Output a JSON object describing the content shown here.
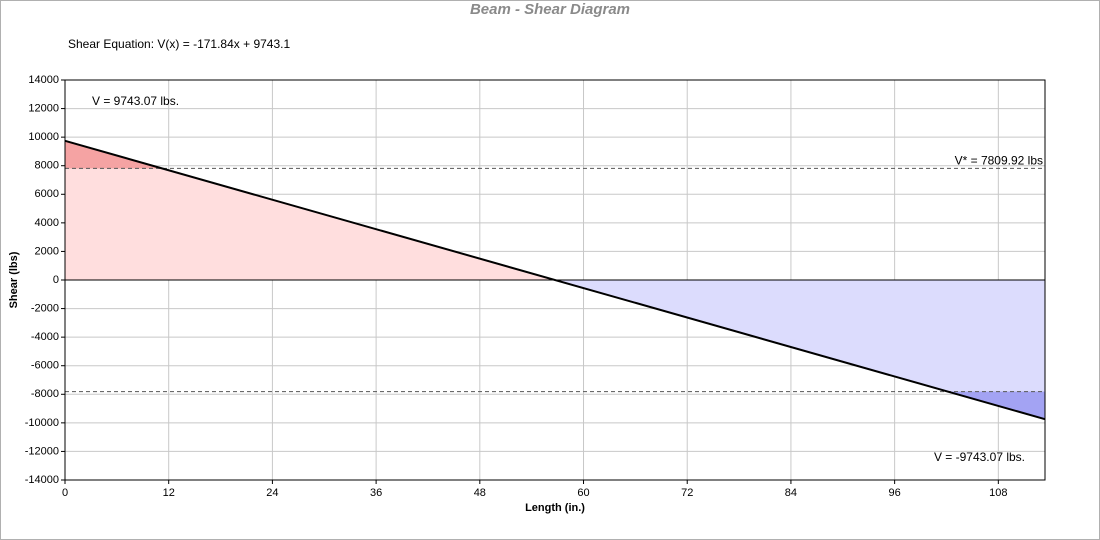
{
  "chart_data": {
    "type": "line",
    "title": "Beam - Shear Diagram",
    "equation": "Shear Equation:  V(x) = -171.84x + 9743.1",
    "x_label": "Length (in.)",
    "y_label": "Shear (lbs)",
    "x": [
      0,
      113.4
    ],
    "series": [
      {
        "color": "#000000",
        "values": [
          9743.07,
          -9743.07
        ],
        "value_labels": [
          "V = 9743.07 lbs.",
          "V = -9743.07 lbs."
        ]
      }
    ],
    "reference_lines": [
      {
        "value": 7809.92,
        "label": "V* = 7809.92 lbs"
      },
      {
        "value": -7809.92
      }
    ],
    "fill_colors": {
      "positive": "#ffdede",
      "positive_excess": "#f5a3a3",
      "negative": "#dcdcfd",
      "negative_excess": "#a3a3f3"
    },
    "xlim": [
      0,
      113.4
    ],
    "xticks": [
      0,
      12,
      24,
      36,
      48,
      60,
      72,
      84,
      96,
      108
    ],
    "ylim": [
      -14000,
      14000
    ],
    "yticks": [
      -14000,
      -12000,
      -10000,
      -8000,
      -6000,
      -4000,
      -2000,
      0,
      2000,
      4000,
      6000,
      8000,
      10000,
      12000,
      14000
    ],
    "grid": true
  }
}
